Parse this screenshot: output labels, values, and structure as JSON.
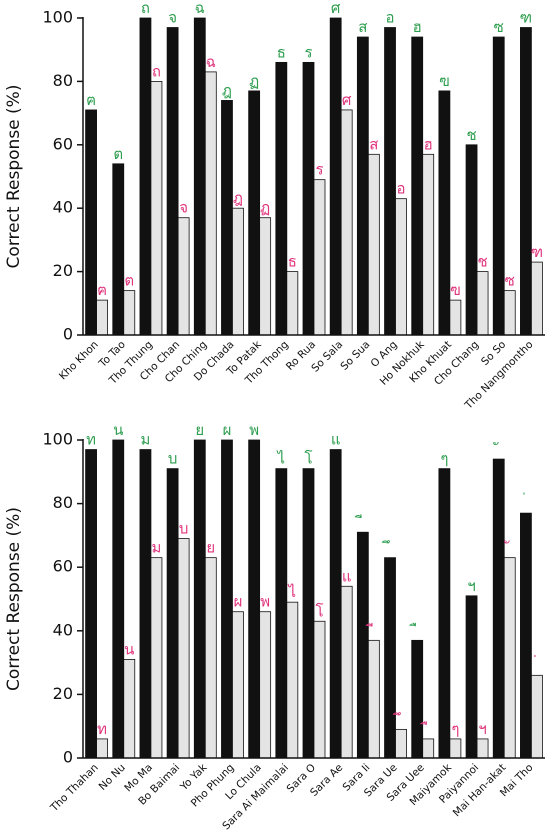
{
  "chart_data": [
    {
      "type": "bar",
      "ylabel": "Correct Response (%)",
      "ylim": [
        0,
        100
      ],
      "yticks": [
        0,
        20,
        40,
        60,
        80,
        100
      ],
      "categories": [
        "Kho Khon",
        "To Tao",
        "Tho Thung",
        "Cho Chan",
        "Cho Ching",
        "Do Chada",
        "To Patak",
        "Tho Thong",
        "Ro Rua",
        "So Sala",
        "So Sua",
        "O Ang",
        "Ho Nokhuk",
        "Kho Khuat",
        "Cho Chang",
        "So So",
        "Tho Nangmontho"
      ],
      "symbols": [
        "ฅ",
        "ต",
        "ถ",
        "จ",
        "ฉ",
        "ฎ",
        "ฏ",
        "ธ",
        "ร",
        "ศ",
        "ส",
        "อ",
        "ฮ",
        "ฃ",
        "ช",
        "ซ",
        "ฑ"
      ],
      "series": [
        {
          "color": "#111111",
          "symbol_color": "#2e9e4f",
          "values": [
            71,
            54,
            100,
            97,
            100,
            74,
            77,
            86,
            86,
            100,
            94,
            97,
            94,
            77,
            60,
            94,
            97
          ]
        },
        {
          "color": "#e4e4e4",
          "symbol_color": "#e0357d",
          "values": [
            11,
            14,
            80,
            37,
            83,
            40,
            37,
            20,
            49,
            71,
            57,
            43,
            57,
            11,
            20,
            14,
            23
          ]
        }
      ]
    },
    {
      "type": "bar",
      "ylabel": "Correct Response (%)",
      "ylim": [
        0,
        100
      ],
      "yticks": [
        0,
        20,
        40,
        60,
        80,
        100
      ],
      "categories": [
        "Tho Thahan",
        "No Nu",
        "Mo Ma",
        "Bo Baimai",
        "Yo Yak",
        "Pho Phung",
        "Lo Chula",
        "Sara Ai Maimalai",
        "Sara O",
        "Sara Ae",
        "Sara Ii",
        "Sara Ue",
        "Sara Uee",
        "Maiyamok",
        "Paiyannoi",
        "Mai Han-akat",
        "Mai Tho"
      ],
      "symbols": [
        "ท",
        "น",
        "ม",
        "บ",
        "ย",
        "ผ",
        "พ",
        "ไ",
        "โ",
        "แ",
        "ี",
        "ึ",
        "ื",
        "ๆ",
        "ฯ",
        "ั",
        "่"
      ],
      "series": [
        {
          "color": "#111111",
          "symbol_color": "#2e9e4f",
          "values": [
            97,
            100,
            97,
            91,
            100,
            100,
            100,
            91,
            91,
            97,
            71,
            63,
            37,
            91,
            51,
            94,
            77
          ]
        },
        {
          "color": "#e4e4e4",
          "symbol_color": "#e0357d",
          "values": [
            6,
            31,
            63,
            69,
            63,
            46,
            46,
            49,
            43,
            54,
            37,
            9,
            6,
            6,
            6,
            63,
            26
          ]
        }
      ]
    }
  ]
}
